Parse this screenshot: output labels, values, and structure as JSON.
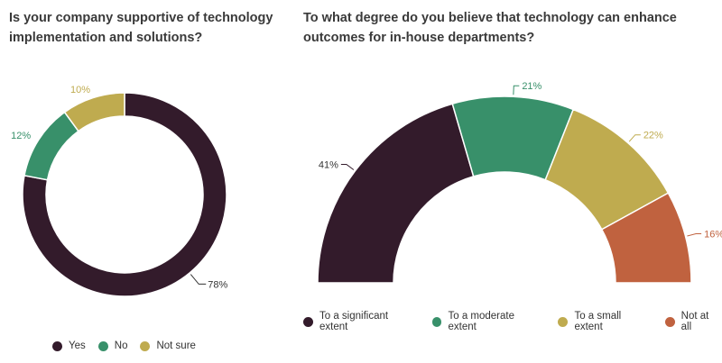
{
  "chart_data": [
    {
      "type": "pie",
      "variant": "donut",
      "title": "Is your company supportive of technology implementation and solutions?",
      "categories": [
        "Yes",
        "No",
        "Not sure"
      ],
      "values": [
        78,
        12,
        10
      ],
      "labels": [
        "78%",
        "12%",
        "10%"
      ],
      "colors": [
        "#331b2b",
        "#38906a",
        "#bfab4f"
      ],
      "legend_position": "bottom"
    },
    {
      "type": "pie",
      "variant": "semicircle donut",
      "title": "To what degree do you believe that technology can enhance outcomes for in-house departments?",
      "categories": [
        "To a significant extent",
        "To a moderate extent",
        "To a small extent",
        "Not at all"
      ],
      "values": [
        41,
        21,
        22,
        16
      ],
      "labels": [
        "41%",
        "21%",
        "22%",
        "16%"
      ],
      "colors": [
        "#331b2b",
        "#38906a",
        "#bfab4f",
        "#c0623f"
      ],
      "legend_position": "bottom"
    }
  ]
}
